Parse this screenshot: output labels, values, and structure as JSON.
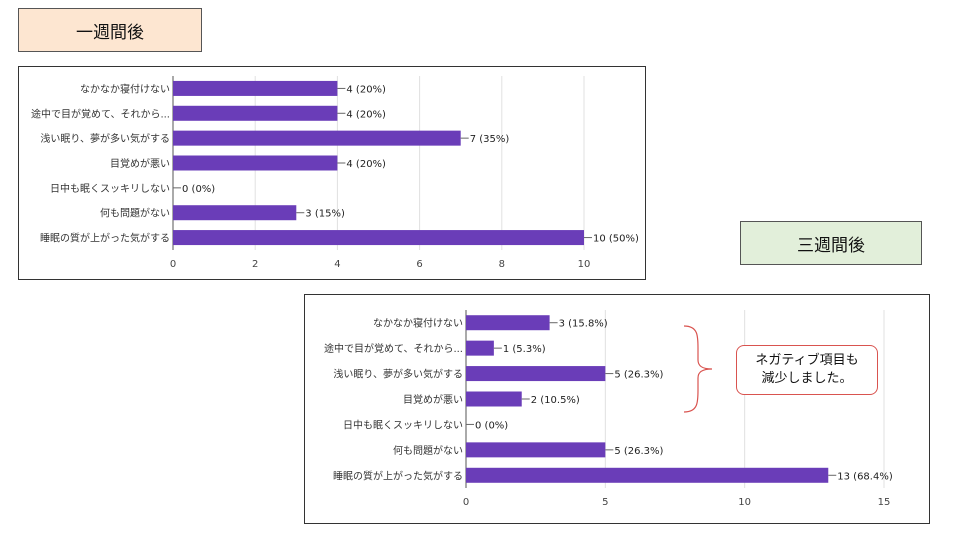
{
  "tags": {
    "week1": "一週間後",
    "week3": "三週間後"
  },
  "note": {
    "line1": "ネガティブ項目も",
    "line2": "減少しました。"
  },
  "colors": {
    "bar": "#6a3db8",
    "grid": "#e0e0e0",
    "axis": "#555555",
    "note_border": "#d9534f",
    "week1_tag_bg": "#fde6d1",
    "week3_tag_bg": "#e2efda"
  },
  "chart_data": [
    {
      "type": "bar",
      "orientation": "horizontal",
      "categories": [
        "なかなか寝付けない",
        "途中で目が覚めて、それから...",
        "浅い眠り、夢が多い気がする",
        "目覚めが悪い",
        "日中も眠くスッキリしない",
        "何も問題がない",
        "睡眠の質が上がった気がする"
      ],
      "values": [
        4,
        4,
        7,
        4,
        0,
        3,
        10
      ],
      "data_labels": [
        "4 (20%)",
        "4 (20%)",
        "7 (35%)",
        "4 (20%)",
        "0 (0%)",
        "3 (15%)",
        "10 (50%)"
      ],
      "xlim": [
        0,
        10
      ],
      "xticks": [
        0,
        2,
        4,
        6,
        8,
        10
      ],
      "grid": true
    },
    {
      "type": "bar",
      "orientation": "horizontal",
      "categories": [
        "なかなか寝付けない",
        "途中で目が覚めて、それから...",
        "浅い眠り、夢が多い気がする",
        "目覚めが悪い",
        "日中も眠くスッキリしない",
        "何も問題がない",
        "睡眠の質が上がった気がする"
      ],
      "values": [
        3,
        1,
        5,
        2,
        0,
        5,
        13
      ],
      "data_labels": [
        "3 (15.8%)",
        "1 (5.3%)",
        "5 (26.3%)",
        "2 (10.5%)",
        "0 (0%)",
        "5 (26.3%)",
        "13 (68.4%)"
      ],
      "xlim": [
        0,
        15
      ],
      "xticks": [
        0,
        5,
        10,
        15
      ],
      "grid": true
    }
  ]
}
